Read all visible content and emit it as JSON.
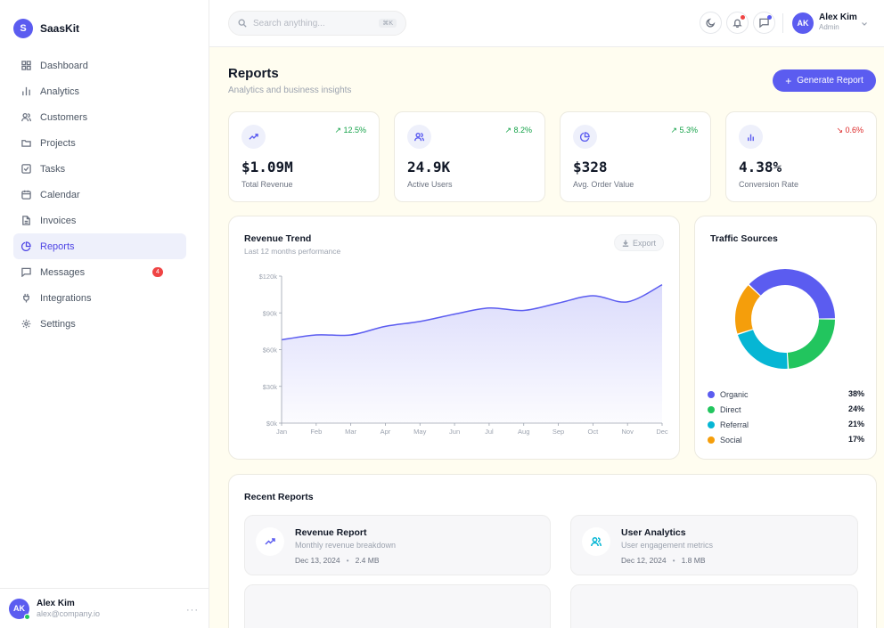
{
  "brand": {
    "logo_letter": "S",
    "name": "SaasKit"
  },
  "sidebar": {
    "items": [
      {
        "label": "Dashboard",
        "icon": "grid-icon"
      },
      {
        "label": "Analytics",
        "icon": "bar-chart-icon"
      },
      {
        "label": "Customers",
        "icon": "users-icon"
      },
      {
        "label": "Projects",
        "icon": "folder-icon"
      },
      {
        "label": "Tasks",
        "icon": "checkbox-icon"
      },
      {
        "label": "Calendar",
        "icon": "calendar-icon"
      },
      {
        "label": "Invoices",
        "icon": "document-icon"
      },
      {
        "label": "Reports",
        "icon": "pie-chart-icon",
        "active": true
      },
      {
        "label": "Messages",
        "icon": "chat-icon",
        "badge": "4"
      },
      {
        "label": "Integrations",
        "icon": "plug-icon"
      },
      {
        "label": "Settings",
        "icon": "gear-icon"
      }
    ],
    "user": {
      "initials": "AK",
      "name": "Alex Kim",
      "email": "alex@company.io"
    }
  },
  "topbar": {
    "search_placeholder": "Search anything...",
    "search_shortcut": "⌘K",
    "user": {
      "initials": "AK",
      "name": "Alex Kim",
      "role": "Admin"
    }
  },
  "page": {
    "title": "Reports",
    "subtitle": "Analytics and business insights",
    "generate_label": "Generate Report"
  },
  "stats": [
    {
      "icon": "trending-up-icon",
      "change": "↗ 12.5%",
      "direction": "up",
      "value": "$1.09M",
      "label": "Total Revenue"
    },
    {
      "icon": "users-icon",
      "change": "↗ 8.2%",
      "direction": "up",
      "value": "24.9K",
      "label": "Active Users"
    },
    {
      "icon": "pie-chart-icon",
      "change": "↗ 5.3%",
      "direction": "up",
      "value": "$328",
      "label": "Avg. Order Value"
    },
    {
      "icon": "bar-chart-icon",
      "change": "↘ 0.6%",
      "direction": "down",
      "value": "4.38%",
      "label": "Conversion Rate"
    }
  ],
  "revenue_card": {
    "title": "Revenue Trend",
    "subtitle": "Last 12 months performance",
    "export_label": "Export"
  },
  "traffic_card": {
    "title": "Traffic Sources"
  },
  "recent": {
    "title": "Recent Reports",
    "items": [
      {
        "icon": "trending-up-icon",
        "name": "Revenue Report",
        "desc": "Monthly revenue breakdown",
        "date": "Dec 13, 2024",
        "size": "2.4 MB"
      },
      {
        "icon": "users-icon",
        "name": "User Analytics",
        "desc": "User engagement metrics",
        "date": "Dec 12, 2024",
        "size": "1.8 MB"
      }
    ]
  },
  "colors": {
    "accent": "#5b5cf0",
    "organic": "#5b5cf0",
    "direct": "#22c55e",
    "referral": "#06b6d4",
    "social": "#f59e0b"
  },
  "chart_data": [
    {
      "type": "area",
      "categories": [
        "Jan",
        "Feb",
        "Mar",
        "Apr",
        "May",
        "Jun",
        "Jul",
        "Aug",
        "Sep",
        "Oct",
        "Nov",
        "Dec"
      ],
      "series": [
        {
          "values": [
            68000,
            72000,
            72000,
            79000,
            83000,
            89000,
            94000,
            92000,
            98000,
            104000,
            99000,
            113000
          ]
        }
      ],
      "yticks": [
        "$0k",
        "$30k",
        "$60k",
        "$90k",
        "$120k"
      ],
      "ylim": [
        0,
        120000
      ],
      "grid": false
    },
    {
      "type": "pie",
      "categories": [
        "Organic",
        "Direct",
        "Referral",
        "Social"
      ],
      "values": [
        38,
        24,
        21,
        17
      ],
      "value_labels": [
        "38%",
        "24%",
        "21%",
        "17%"
      ],
      "legend": "bottom"
    }
  ]
}
